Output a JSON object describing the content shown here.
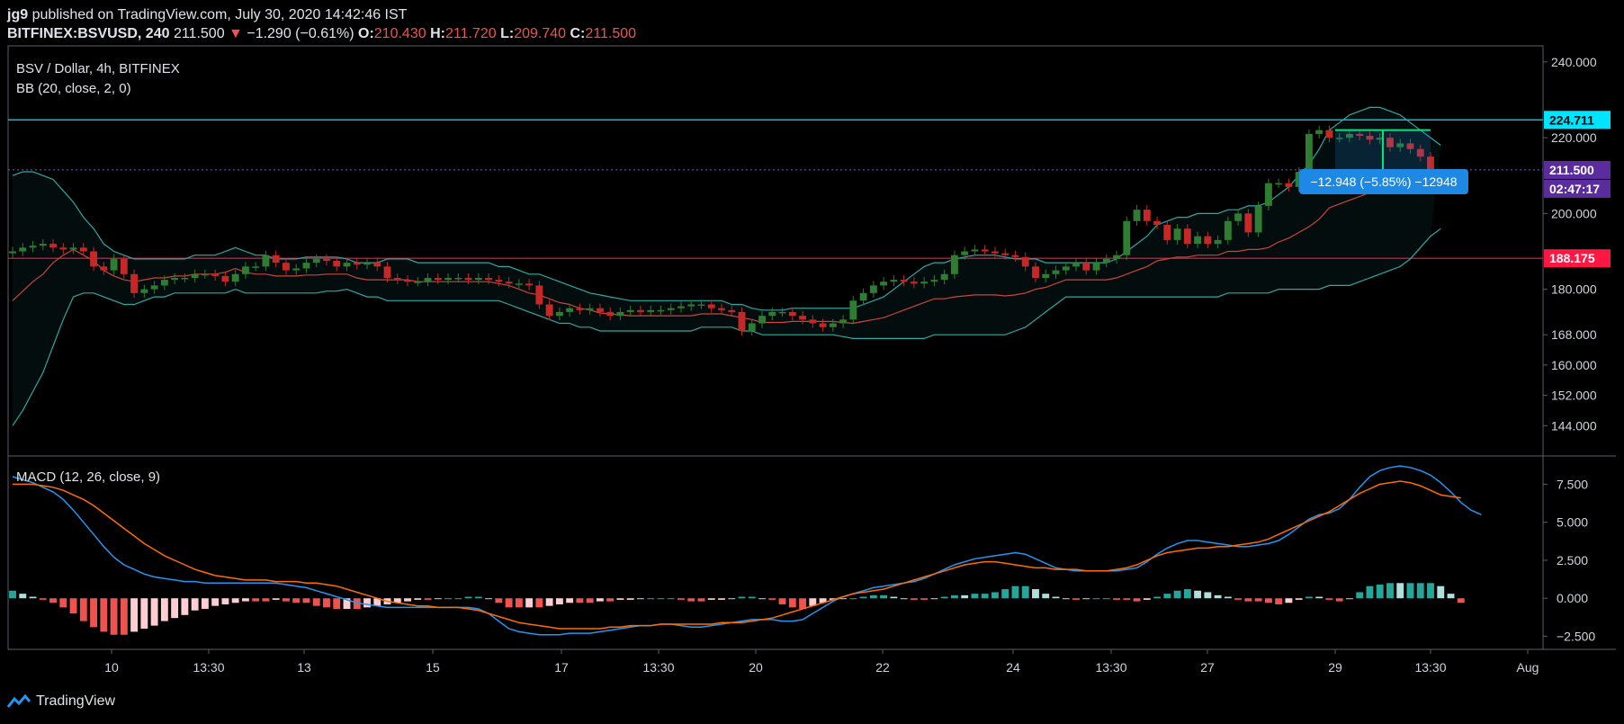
{
  "header": {
    "author": "jg9",
    "published_text": "published on TradingView.com, July 30, 2020 14:42:46 IST",
    "symbol": "BITFINEX:BSVUSD, 240",
    "price": "211.500",
    "change": "−1.290 (−0.61%)",
    "o_label": "O:",
    "o_value": "210.430",
    "h_label": "H:",
    "h_value": "211.720",
    "l_label": "L:",
    "l_value": "209.740",
    "c_label": "C:",
    "c_value": "211.500"
  },
  "legend": {
    "pair": "BSV / Dollar, 4h, BITFINEX",
    "indicator": "BB (20, close, 2, 0)",
    "macd": "MACD (12, 26, close, 9)"
  },
  "badges": {
    "resistance": "224.711",
    "price": "211.500",
    "countdown": "02:47:17",
    "support": "188.175",
    "measure": "−12.948 (−5.85%) −12948"
  },
  "footer": {
    "brand": "TradingView"
  },
  "colors": {
    "up": "#2e7d32",
    "down": "#c62828",
    "bb_band": "#2ea9a3",
    "bb_basis": "#c9453d",
    "resistance": "#00e5ff",
    "support": "#ff1744",
    "macd_line": "#2196f3",
    "signal_line": "#ff6d00",
    "measure": "#00e676",
    "badge_blue": "#1e88e5",
    "badge_purple": "#5b2c9d"
  },
  "chart_data": {
    "type": "candlestick",
    "price_axis": {
      "ticks": [
        "240.000",
        "220.000",
        "211.500",
        "200.000",
        "180.000",
        "168.000",
        "160.000",
        "152.000",
        "144.000"
      ],
      "ylim": [
        136,
        244
      ]
    },
    "macd_axis": {
      "ticks": [
        "7.500",
        "5.000",
        "2.500",
        "0.000",
        "−2.500"
      ],
      "ylim": [
        -3.3,
        9.3
      ]
    },
    "x_ticks": [
      "10",
      "13:30",
      "13",
      "15",
      "17",
      "13:30",
      "20",
      "22",
      "24",
      "13:30",
      "27",
      "29",
      "13:30",
      "Aug"
    ],
    "levels": {
      "resistance": 224.711,
      "support": 188.175,
      "last": 211.5
    },
    "measure": {
      "from": 222.0,
      "to": 209.0
    },
    "close": [
      190,
      191,
      191.5,
      192,
      191,
      190.5,
      191,
      190,
      186,
      185,
      188,
      184,
      179,
      180,
      181,
      182.5,
      183,
      183,
      184,
      184,
      183.5,
      182,
      184,
      186,
      186,
      189,
      187,
      185,
      185.5,
      187,
      188,
      187.5,
      186,
      187,
      186.5,
      187,
      186,
      183,
      182.5,
      182,
      182,
      183,
      182.5,
      183,
      183,
      182.5,
      183,
      182.5,
      182,
      181.5,
      181.5,
      181,
      176,
      173,
      174,
      175,
      174.5,
      175,
      174,
      173,
      174,
      174.5,
      174,
      174.5,
      174.5,
      175,
      175.5,
      176,
      176,
      175,
      174.5,
      174,
      169,
      171,
      173,
      174,
      174,
      173,
      172,
      171,
      170,
      171,
      172,
      177,
      179,
      181,
      182,
      182.5,
      182,
      181.5,
      182,
      182.5,
      184,
      189,
      190,
      190.5,
      190,
      189.5,
      189,
      188.5,
      186,
      183,
      184,
      185,
      186,
      187,
      185,
      187,
      188,
      189,
      198,
      201,
      198,
      197,
      193,
      196,
      192,
      194,
      192,
      193,
      198,
      200,
      195,
      202,
      208,
      208,
      207,
      211,
      221,
      222,
      220,
      220,
      221,
      220.5,
      219.5,
      220,
      217.5,
      218.5,
      217,
      215,
      211.5
    ],
    "bb_upper": [
      210,
      211,
      211,
      210,
      209,
      206,
      203,
      199,
      196,
      192,
      190,
      189,
      188,
      188,
      188,
      188,
      188,
      188,
      189,
      189,
      189,
      190,
      191,
      190,
      189,
      189,
      188,
      188,
      188,
      188.5,
      188.5,
      188.5,
      188.5,
      188,
      187,
      187,
      187,
      188,
      188,
      188,
      187,
      187,
      187,
      187,
      187,
      187,
      187,
      187,
      186,
      186,
      185,
      184,
      184,
      183,
      182,
      181,
      180,
      179,
      178.5,
      178,
      177.5,
      177,
      177,
      177,
      177,
      177,
      177,
      177,
      177,
      177,
      177,
      176,
      176,
      175,
      174.5,
      174.5,
      174.5,
      175,
      175,
      175,
      175,
      175,
      175,
      175,
      176,
      177,
      178,
      180,
      182,
      184,
      186,
      187,
      187,
      188,
      188.5,
      189,
      189,
      189,
      188.5,
      188,
      188,
      188,
      187,
      187,
      187,
      187,
      187,
      187,
      187,
      188,
      190,
      192,
      194,
      197,
      198,
      199,
      199,
      200,
      200,
      200,
      201,
      201,
      202,
      202,
      203,
      205,
      207,
      210,
      213,
      217,
      222,
      224,
      226,
      227,
      228,
      228,
      227,
      226,
      224,
      222,
      220,
      218
    ],
    "bb_lower": [
      144,
      148,
      153,
      158,
      165,
      172,
      178,
      179,
      179,
      178,
      177,
      176,
      176,
      177,
      178,
      178,
      179,
      179,
      179,
      179,
      179,
      179,
      180,
      179,
      179,
      179,
      179,
      179,
      179,
      179,
      179,
      179.5,
      179.5,
      180,
      179,
      178,
      178,
      177,
      177,
      177,
      177,
      177,
      177,
      177,
      177,
      177,
      177,
      177,
      177,
      176,
      175,
      174,
      173,
      172,
      171,
      171,
      170,
      170,
      169,
      169,
      169,
      169,
      169,
      169,
      169,
      169,
      169,
      169,
      170,
      170,
      170,
      170,
      169,
      169,
      168,
      168,
      168,
      168,
      168,
      168,
      168,
      168,
      167.5,
      167,
      167,
      167,
      167,
      167,
      167,
      167,
      167,
      168,
      168,
      168,
      168,
      168,
      168,
      168,
      168,
      169,
      170,
      172,
      174,
      176,
      178,
      178,
      178,
      178,
      178,
      178,
      178,
      178,
      178,
      178,
      178,
      178,
      178,
      178,
      178,
      178,
      179,
      179,
      179,
      179,
      179,
      180,
      180,
      180,
      180,
      180,
      181,
      181,
      181,
      182,
      183,
      184,
      185,
      186,
      188,
      191,
      194,
      196
    ],
    "macd": [
      8.0,
      7.8,
      7.6,
      7.3,
      7.0,
      6.5,
      5.8,
      5.0,
      4.2,
      3.4,
      2.7,
      2.2,
      1.9,
      1.6,
      1.4,
      1.3,
      1.2,
      1.1,
      1.1,
      1.0,
      1.0,
      1.0,
      1.0,
      1.0,
      1.0,
      1.0,
      1.0,
      0.9,
      0.8,
      0.7,
      0.5,
      0.3,
      0.1,
      -0.1,
      -0.3,
      -0.4,
      -0.5,
      -0.6,
      -0.6,
      -0.6,
      -0.6,
      -0.6,
      -0.6,
      -0.6,
      -0.6,
      -0.6,
      -0.7,
      -1.0,
      -1.5,
      -2.0,
      -2.2,
      -2.3,
      -2.4,
      -2.4,
      -2.4,
      -2.3,
      -2.3,
      -2.3,
      -2.2,
      -2.1,
      -2.0,
      -1.9,
      -1.8,
      -1.8,
      -1.7,
      -1.7,
      -1.8,
      -1.9,
      -1.9,
      -1.8,
      -1.7,
      -1.6,
      -1.5,
      -1.4,
      -1.4,
      -1.4,
      -1.5,
      -1.5,
      -1.4,
      -1.0,
      -0.6,
      -0.2,
      0.1,
      0.3,
      0.5,
      0.7,
      0.8,
      0.9,
      1.0,
      1.1,
      1.3,
      1.6,
      1.9,
      2.2,
      2.4,
      2.6,
      2.7,
      2.8,
      2.9,
      3.0,
      2.9,
      2.6,
      2.3,
      2.0,
      1.9,
      1.8,
      1.8,
      1.8,
      1.8,
      1.8,
      1.9,
      2.0,
      2.4,
      2.9,
      3.3,
      3.6,
      3.8,
      3.8,
      3.7,
      3.6,
      3.5,
      3.4,
      3.4,
      3.5,
      3.6,
      3.8,
      4.2,
      4.7,
      5.2,
      5.5,
      5.6,
      5.9,
      6.5,
      7.3,
      8.0,
      8.4,
      8.6,
      8.7,
      8.6,
      8.4,
      8.1,
      7.6,
      7.0,
      6.3,
      5.8,
      5.5
    ],
    "signal": [
      7.5,
      7.5,
      7.5,
      7.4,
      7.3,
      7.1,
      6.8,
      6.5,
      6.1,
      5.6,
      5.1,
      4.6,
      4.1,
      3.6,
      3.2,
      2.8,
      2.5,
      2.2,
      1.9,
      1.7,
      1.5,
      1.4,
      1.3,
      1.2,
      1.2,
      1.2,
      1.1,
      1.1,
      1.1,
      1.0,
      1.0,
      0.9,
      0.8,
      0.6,
      0.4,
      0.2,
      0.0,
      -0.2,
      -0.3,
      -0.4,
      -0.5,
      -0.5,
      -0.6,
      -0.6,
      -0.6,
      -0.7,
      -0.8,
      -1.0,
      -1.2,
      -1.4,
      -1.6,
      -1.7,
      -1.8,
      -1.9,
      -2.0,
      -2.0,
      -2.0,
      -2.0,
      -2.0,
      -1.9,
      -1.9,
      -1.8,
      -1.8,
      -1.8,
      -1.7,
      -1.7,
      -1.7,
      -1.7,
      -1.7,
      -1.7,
      -1.6,
      -1.6,
      -1.6,
      -1.5,
      -1.4,
      -1.3,
      -1.1,
      -0.9,
      -0.7,
      -0.5,
      -0.3,
      -0.1,
      0.1,
      0.3,
      0.4,
      0.5,
      0.6,
      0.8,
      1.0,
      1.2,
      1.4,
      1.6,
      1.8,
      2.0,
      2.2,
      2.3,
      2.4,
      2.4,
      2.3,
      2.2,
      2.1,
      2.0,
      2.0,
      1.9,
      1.9,
      1.9,
      1.8,
      1.8,
      1.8,
      1.9,
      2.0,
      2.2,
      2.5,
      2.8,
      3.0,
      3.1,
      3.2,
      3.3,
      3.3,
      3.4,
      3.4,
      3.5,
      3.6,
      3.7,
      3.9,
      4.2,
      4.5,
      4.8,
      5.1,
      5.4,
      5.7,
      6.1,
      6.5,
      6.9,
      7.2,
      7.5,
      7.6,
      7.7,
      7.6,
      7.4,
      7.1,
      6.8,
      6.7,
      6.6
    ]
  }
}
